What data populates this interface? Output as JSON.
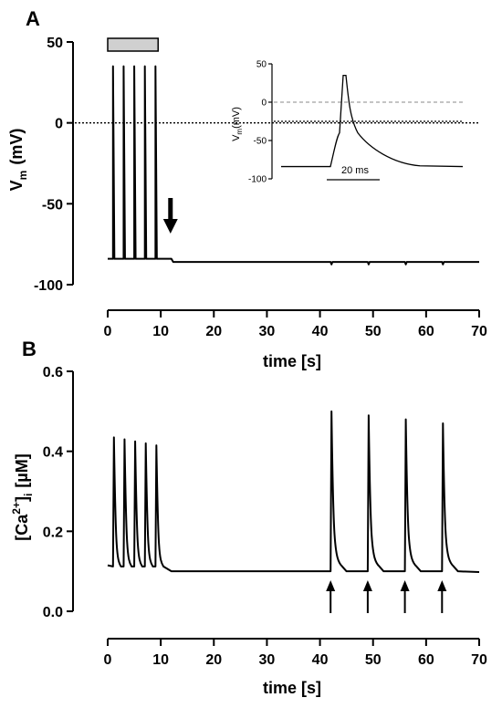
{
  "panels": {
    "a": {
      "letter": "A",
      "ylabel_main": "V",
      "ylabel_sub": "m",
      "ylabel_unit": "(mV)",
      "xlabel": "time [s]"
    },
    "b": {
      "letter": "B",
      "ylabel_pre": "[Ca",
      "ylabel_sup": "2+",
      "ylabel_mid": "]",
      "ylabel_sub": "i",
      "ylabel_unit": "[µM]",
      "xlabel": "time [s]"
    },
    "inset": {
      "ylabel_main": "V",
      "ylabel_sub": "m",
      "ylabel_unit": "(mV)",
      "scalebar_label": "20 ms"
    }
  },
  "chart_data": [
    {
      "type": "line",
      "panel": "A",
      "title": "",
      "xlabel": "time [s]",
      "ylabel": "Vm (mV)",
      "xlim": [
        0,
        70
      ],
      "ylim": [
        -100,
        50
      ],
      "x_ticks": [
        0,
        10,
        20,
        30,
        40,
        50,
        60,
        70
      ],
      "y_ticks": [
        50,
        0,
        -50,
        -100
      ],
      "reference_line": {
        "y": 0,
        "style": "dotted"
      },
      "stimulus_bar": {
        "x_start": 0,
        "x_end": 9.5,
        "color": "#d0d0d0"
      },
      "spikes": {
        "x": [
          1,
          3,
          5,
          7,
          9
        ],
        "peak": 35,
        "base": -84
      },
      "baseline_before": -84,
      "baseline_after": -86,
      "hyperpolarization_time": 12,
      "arrow_x": 12,
      "small_deflections_x": [
        42,
        49,
        56,
        63
      ]
    },
    {
      "type": "line",
      "panel": "A-inset",
      "title": "",
      "xlabel": "",
      "ylabel": "Vm (mV)",
      "ylim": [
        -100,
        50
      ],
      "y_ticks": [
        50,
        0,
        -50,
        -100
      ],
      "reference_lines": [
        {
          "y": 0,
          "style": "dashed",
          "color": "#888888"
        },
        {
          "y": -25,
          "style": "dotted",
          "color": "#000000"
        }
      ],
      "resting_potential": -84,
      "peak": 35,
      "scalebar_ms": 20
    },
    {
      "type": "line",
      "panel": "B",
      "title": "",
      "xlabel": "time [s]",
      "ylabel": "[Ca2+]i [µM]",
      "xlim": [
        0,
        70
      ],
      "ylim": [
        0.0,
        0.6
      ],
      "x_ticks": [
        0,
        10,
        20,
        30,
        40,
        50,
        60,
        70
      ],
      "y_ticks": [
        0.6,
        0.4,
        0.2,
        0.0
      ],
      "y_tick_labels": [
        "0.6",
        "0.4",
        "0.2",
        "0.0"
      ],
      "baseline": 0.1,
      "initial_spikes": {
        "x": [
          1,
          3,
          5,
          7,
          9
        ],
        "peaks": [
          0.435,
          0.43,
          0.425,
          0.42,
          0.415
        ]
      },
      "later_spikes": {
        "x": [
          42,
          49,
          56,
          63
        ],
        "peaks": [
          0.5,
          0.49,
          0.48,
          0.47
        ]
      },
      "arrows_x": [
        42,
        49,
        56,
        63
      ]
    }
  ]
}
